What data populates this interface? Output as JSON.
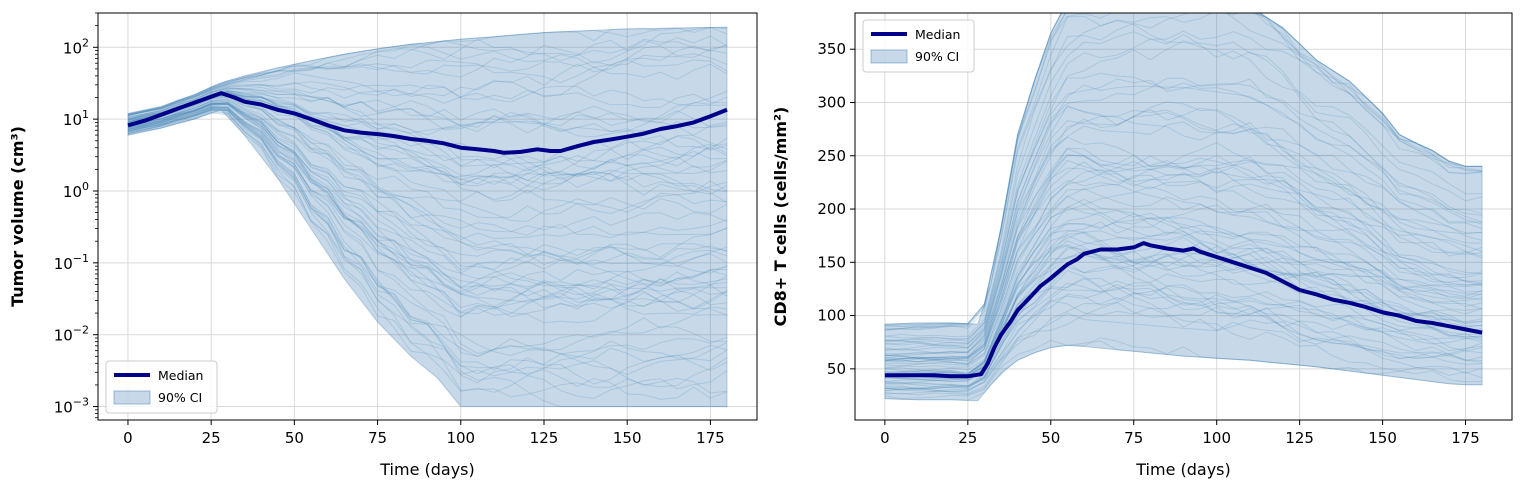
{
  "colors": {
    "median": "#00008b",
    "band": "#4682b4",
    "grid": "#d9d9d9"
  },
  "chart_data": [
    {
      "type": "line",
      "xlabel": "Time (days)",
      "ylabel": "Tumor volume (cm³)",
      "yscale": "log",
      "xlim": [
        -9,
        189
      ],
      "ylim": [
        0.00065,
        300
      ],
      "xticks": [
        0,
        25,
        50,
        75,
        100,
        125,
        150,
        175
      ],
      "xtick_labels": [
        "0",
        "25",
        "50",
        "75",
        "100",
        "125",
        "150",
        "175"
      ],
      "yticks": [
        0.001,
        0.01,
        0.1,
        1,
        10,
        100
      ],
      "ytick_labels": [
        {
          "base": "10",
          "exp": "−3"
        },
        {
          "base": "10",
          "exp": "−2"
        },
        {
          "base": "10",
          "exp": "−1"
        },
        {
          "base": "10",
          "exp": "0"
        },
        {
          "base": "10",
          "exp": "1"
        },
        {
          "base": "10",
          "exp": "2"
        }
      ],
      "grid": true,
      "legend_position": "bottom-left",
      "legend": [
        "Median",
        "90% CI"
      ],
      "series": [
        {
          "name": "Median",
          "x": [
            0,
            5,
            10,
            15,
            20,
            25,
            28,
            32,
            35,
            40,
            45,
            50,
            55,
            60,
            65,
            70,
            75,
            80,
            85,
            90,
            95,
            100,
            105,
            110,
            113,
            118,
            123,
            127,
            130,
            135,
            140,
            145,
            150,
            155,
            160,
            165,
            170,
            175,
            180
          ],
          "y": [
            8.2,
            9.5,
            11.5,
            14,
            17,
            20.5,
            23,
            20,
            17.5,
            16,
            13.5,
            12,
            10,
            8.2,
            7,
            6.5,
            6.2,
            5.8,
            5.3,
            5.0,
            4.6,
            4.0,
            3.8,
            3.6,
            3.4,
            3.5,
            3.8,
            3.6,
            3.6,
            4.2,
            4.8,
            5.2,
            5.7,
            6.3,
            7.3,
            8.0,
            9.0,
            11.0,
            13.5
          ]
        },
        {
          "name": "90% CI",
          "x": [
            0,
            10,
            20,
            28,
            35,
            45,
            55,
            65,
            75,
            85,
            93,
            100,
            110,
            125,
            150,
            180
          ],
          "upper": [
            12,
            15,
            22,
            32,
            40,
            52,
            65,
            80,
            95,
            110,
            120,
            130,
            140,
            160,
            180,
            190
          ],
          "lower": [
            6,
            7.5,
            10,
            13.5,
            6,
            1.5,
            0.3,
            0.06,
            0.015,
            0.005,
            0.0025,
            0.001,
            0.001,
            0.001,
            0.001,
            0.001
          ]
        }
      ]
    },
    {
      "type": "line",
      "xlabel": "Time (days)",
      "ylabel": "CD8+ T cells (cells/mm²)",
      "yscale": "linear",
      "xlim": [
        -9,
        189
      ],
      "ylim": [
        2,
        384
      ],
      "xticks": [
        0,
        25,
        50,
        75,
        100,
        125,
        150,
        175
      ],
      "xtick_labels": [
        "0",
        "25",
        "50",
        "75",
        "100",
        "125",
        "150",
        "175"
      ],
      "yticks": [
        50,
        100,
        150,
        200,
        250,
        300,
        350
      ],
      "ytick_labels": [
        "50",
        "100",
        "150",
        "200",
        "250",
        "300",
        "350"
      ],
      "grid": true,
      "legend_position": "top-left",
      "legend": [
        "Median",
        "90% CI"
      ],
      "series": [
        {
          "name": "Median",
          "x": [
            0,
            5,
            10,
            15,
            20,
            25,
            29,
            31,
            33,
            35,
            38,
            40,
            44,
            47,
            50,
            53,
            55,
            58,
            60,
            65,
            70,
            75,
            78,
            80,
            85,
            90,
            93,
            95,
            100,
            105,
            110,
            115,
            120,
            125,
            130,
            135,
            140,
            145,
            150,
            155,
            160,
            165,
            170,
            175,
            180
          ],
          "y": [
            44,
            44,
            44,
            44,
            43,
            43,
            45,
            55,
            70,
            82,
            95,
            105,
            118,
            128,
            135,
            143,
            148,
            153,
            158,
            162,
            162,
            164,
            168,
            166,
            163,
            161,
            163,
            160,
            155,
            150,
            145,
            140,
            132,
            124,
            120,
            115,
            112,
            108,
            103,
            100,
            95,
            93,
            90,
            87,
            84
          ]
        },
        {
          "name": "90% CI",
          "x": [
            0,
            10,
            20,
            28,
            32,
            36,
            40,
            45,
            50,
            55,
            60,
            70,
            80,
            90,
            100,
            110,
            120,
            130,
            140,
            150,
            155,
            160,
            165,
            170,
            175,
            180
          ],
          "upper": [
            92,
            93,
            93,
            92,
            130,
            200,
            270,
            320,
            365,
            395,
            400,
            400,
            400,
            400,
            395,
            390,
            370,
            340,
            320,
            290,
            270,
            262,
            255,
            245,
            240,
            240
          ],
          "lower": [
            22,
            21,
            21,
            20,
            35,
            48,
            58,
            65,
            70,
            72,
            71,
            68,
            65,
            62,
            60,
            58,
            55,
            52,
            48,
            44,
            42,
            40,
            38,
            36,
            35,
            35
          ]
        }
      ]
    }
  ]
}
